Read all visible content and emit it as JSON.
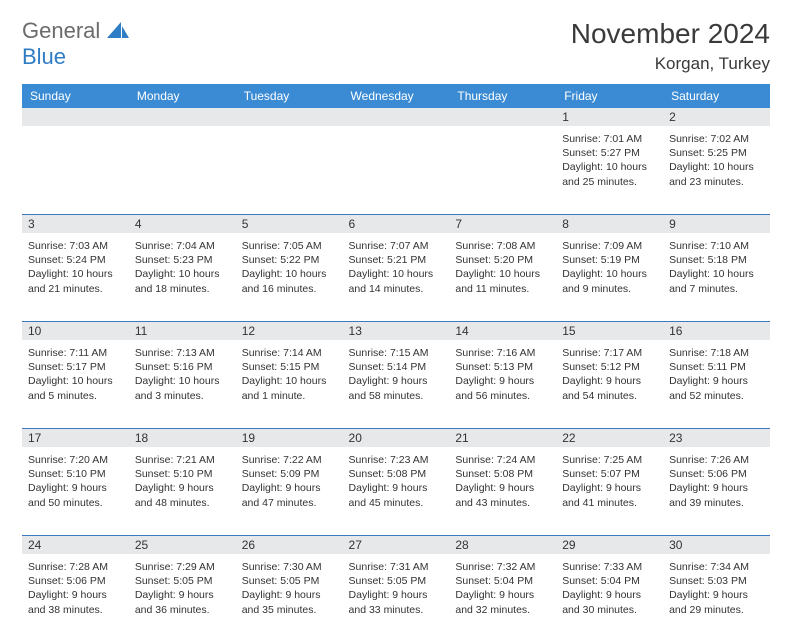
{
  "logo": {
    "text1": "General",
    "text2": "Blue"
  },
  "header": {
    "month_title": "November 2024",
    "location": "Korgan, Turkey"
  },
  "colors": {
    "header_bg": "#3a8bd4",
    "header_fg": "#ffffff",
    "daynum_bg": "#e7e8ea",
    "rule": "#3a7bbf",
    "logo_gray": "#6b6b6b",
    "logo_blue": "#2f7dc4",
    "body_text": "#333333",
    "page_bg": "#ffffff"
  },
  "typography": {
    "title_fontsize": 28,
    "location_fontsize": 17,
    "dayhdr_fontsize": 12,
    "body_fontsize": 10.5
  },
  "day_headers": [
    "Sunday",
    "Monday",
    "Tuesday",
    "Wednesday",
    "Thursday",
    "Friday",
    "Saturday"
  ],
  "weeks": [
    [
      null,
      null,
      null,
      null,
      null,
      {
        "n": "1",
        "sr": "7:01 AM",
        "ss": "5:27 PM",
        "dl": "10 hours and 25 minutes."
      },
      {
        "n": "2",
        "sr": "7:02 AM",
        "ss": "5:25 PM",
        "dl": "10 hours and 23 minutes."
      }
    ],
    [
      {
        "n": "3",
        "sr": "7:03 AM",
        "ss": "5:24 PM",
        "dl": "10 hours and 21 minutes."
      },
      {
        "n": "4",
        "sr": "7:04 AM",
        "ss": "5:23 PM",
        "dl": "10 hours and 18 minutes."
      },
      {
        "n": "5",
        "sr": "7:05 AM",
        "ss": "5:22 PM",
        "dl": "10 hours and 16 minutes."
      },
      {
        "n": "6",
        "sr": "7:07 AM",
        "ss": "5:21 PM",
        "dl": "10 hours and 14 minutes."
      },
      {
        "n": "7",
        "sr": "7:08 AM",
        "ss": "5:20 PM",
        "dl": "10 hours and 11 minutes."
      },
      {
        "n": "8",
        "sr": "7:09 AM",
        "ss": "5:19 PM",
        "dl": "10 hours and 9 minutes."
      },
      {
        "n": "9",
        "sr": "7:10 AM",
        "ss": "5:18 PM",
        "dl": "10 hours and 7 minutes."
      }
    ],
    [
      {
        "n": "10",
        "sr": "7:11 AM",
        "ss": "5:17 PM",
        "dl": "10 hours and 5 minutes."
      },
      {
        "n": "11",
        "sr": "7:13 AM",
        "ss": "5:16 PM",
        "dl": "10 hours and 3 minutes."
      },
      {
        "n": "12",
        "sr": "7:14 AM",
        "ss": "5:15 PM",
        "dl": "10 hours and 1 minute."
      },
      {
        "n": "13",
        "sr": "7:15 AM",
        "ss": "5:14 PM",
        "dl": "9 hours and 58 minutes."
      },
      {
        "n": "14",
        "sr": "7:16 AM",
        "ss": "5:13 PM",
        "dl": "9 hours and 56 minutes."
      },
      {
        "n": "15",
        "sr": "7:17 AM",
        "ss": "5:12 PM",
        "dl": "9 hours and 54 minutes."
      },
      {
        "n": "16",
        "sr": "7:18 AM",
        "ss": "5:11 PM",
        "dl": "9 hours and 52 minutes."
      }
    ],
    [
      {
        "n": "17",
        "sr": "7:20 AM",
        "ss": "5:10 PM",
        "dl": "9 hours and 50 minutes."
      },
      {
        "n": "18",
        "sr": "7:21 AM",
        "ss": "5:10 PM",
        "dl": "9 hours and 48 minutes."
      },
      {
        "n": "19",
        "sr": "7:22 AM",
        "ss": "5:09 PM",
        "dl": "9 hours and 47 minutes."
      },
      {
        "n": "20",
        "sr": "7:23 AM",
        "ss": "5:08 PM",
        "dl": "9 hours and 45 minutes."
      },
      {
        "n": "21",
        "sr": "7:24 AM",
        "ss": "5:08 PM",
        "dl": "9 hours and 43 minutes."
      },
      {
        "n": "22",
        "sr": "7:25 AM",
        "ss": "5:07 PM",
        "dl": "9 hours and 41 minutes."
      },
      {
        "n": "23",
        "sr": "7:26 AM",
        "ss": "5:06 PM",
        "dl": "9 hours and 39 minutes."
      }
    ],
    [
      {
        "n": "24",
        "sr": "7:28 AM",
        "ss": "5:06 PM",
        "dl": "9 hours and 38 minutes."
      },
      {
        "n": "25",
        "sr": "7:29 AM",
        "ss": "5:05 PM",
        "dl": "9 hours and 36 minutes."
      },
      {
        "n": "26",
        "sr": "7:30 AM",
        "ss": "5:05 PM",
        "dl": "9 hours and 35 minutes."
      },
      {
        "n": "27",
        "sr": "7:31 AM",
        "ss": "5:05 PM",
        "dl": "9 hours and 33 minutes."
      },
      {
        "n": "28",
        "sr": "7:32 AM",
        "ss": "5:04 PM",
        "dl": "9 hours and 32 minutes."
      },
      {
        "n": "29",
        "sr": "7:33 AM",
        "ss": "5:04 PM",
        "dl": "9 hours and 30 minutes."
      },
      {
        "n": "30",
        "sr": "7:34 AM",
        "ss": "5:03 PM",
        "dl": "9 hours and 29 minutes."
      }
    ]
  ],
  "labels": {
    "sunrise": "Sunrise:",
    "sunset": "Sunset:",
    "daylight": "Daylight:"
  }
}
